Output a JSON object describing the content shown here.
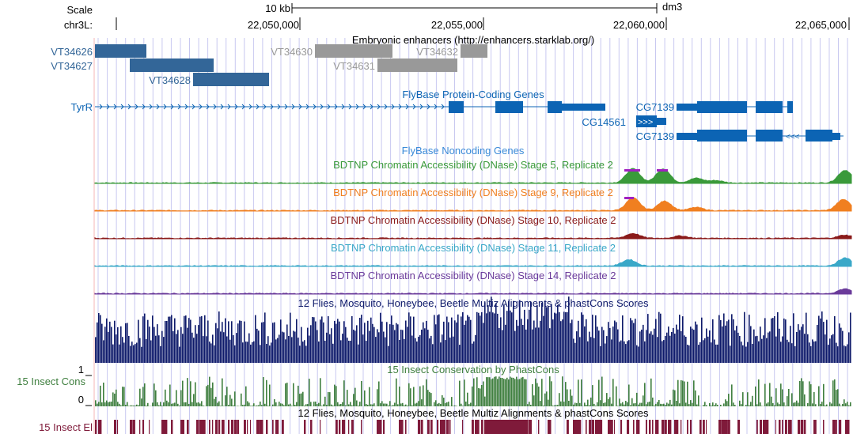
{
  "ruler": {
    "scale_label": "Scale",
    "chrom_label": "chr3L:",
    "scalebar_label": "10 kb",
    "assembly": "dm3",
    "positions": [
      "22,050,000",
      "22,055,000",
      "22,060,000",
      "22,065,000"
    ]
  },
  "tracks": {
    "enhancers": {
      "title": "Embryonic enhancers (http://enhancers.starklab.org/)",
      "items": [
        {
          "name": "VT34626",
          "status": "dark"
        },
        {
          "name": "VT34627",
          "status": "dark"
        },
        {
          "name": "VT34628",
          "status": "dark"
        },
        {
          "name": "VT34630",
          "status": "grey"
        },
        {
          "name": "VT34631",
          "status": "grey"
        },
        {
          "name": "VT34632",
          "status": "grey"
        }
      ]
    },
    "protein_genes": {
      "title": "FlyBase Protein-Coding Genes",
      "genes": [
        "TyrR",
        "CG7139",
        "CG14561",
        "CG7139"
      ]
    },
    "noncoding": {
      "title": "FlyBase Noncoding Genes"
    },
    "dnase": [
      {
        "title": "BDTNP Chromatin Accessibility (DNase) Stage 5, Replicate 2",
        "color": "#3a9a3a"
      },
      {
        "title": "BDTNP Chromatin Accessibility (DNase) Stage 9, Replicate 2",
        "color": "#f07f20"
      },
      {
        "title": "BDTNP Chromatin Accessibility (DNase) Stage 10, Replicate 2",
        "color": "#8a1a1a"
      },
      {
        "title": "BDTNP Chromatin Accessibility (DNase) Stage 11, Replicate 2",
        "color": "#3aa8c8"
      },
      {
        "title": "BDTNP Chromatin Accessibility (DNase) Stage 14, Replicate 2",
        "color": "#6a3a9a"
      }
    ],
    "multiz": {
      "title": "12 Flies, Mosquito, Honeybee, Beetle Multiz Alignments & phastCons Scores"
    },
    "phastcons": {
      "title": "15 Insect Conservation by PhastCons",
      "side_label": "15 Insect Cons",
      "ymax": "1",
      "ymin": "0"
    },
    "elements": {
      "title": "12 Flies, Mosquito, Honeybee, Beetle Multiz Alignments & phastCons Scores",
      "side_label": "15 Insect El"
    }
  },
  "colors": {
    "gene": "#0c64b4",
    "enhancer_dark": "#336698",
    "enhancer_grey": "#999999",
    "multiz": "#0e1a6a",
    "phastcons": "#3f7f3f",
    "elements": "#7f1a3a",
    "gridline": "#c8c8f0",
    "highlight": "#a020c0"
  }
}
